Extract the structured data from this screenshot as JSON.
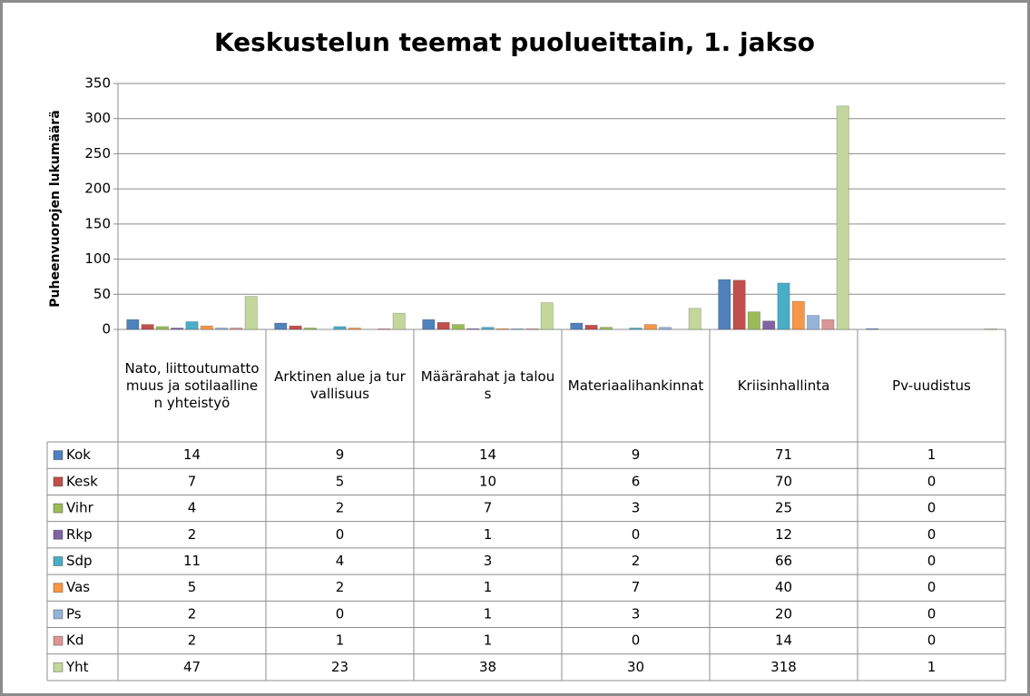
{
  "chart_data": {
    "type": "bar",
    "title": "Keskustelun teemat puolueittain, 1. jakso",
    "ylabel": "Puheenvuorojen lukumäärä",
    "categories": [
      "Nato, liittoutumattomuus ja sotilaallinen yhteistyö",
      "Arktinen alue ja turvallisuus",
      "Määrärahat ja talous",
      "Materiaalihankinnat",
      "Kriisinhallinta",
      "Pv-uudistus"
    ],
    "series": [
      {
        "name": "Kok",
        "color": "#4f81bd",
        "values": [
          14,
          9,
          14,
          9,
          71,
          1
        ]
      },
      {
        "name": "Kesk",
        "color": "#c0504d",
        "values": [
          7,
          5,
          10,
          6,
          70,
          0
        ]
      },
      {
        "name": "Vihr",
        "color": "#9bbb59",
        "values": [
          4,
          2,
          7,
          3,
          25,
          0
        ]
      },
      {
        "name": "Rkp",
        "color": "#8064a2",
        "values": [
          2,
          0,
          1,
          0,
          12,
          0
        ]
      },
      {
        "name": "Sdp",
        "color": "#4bacc6",
        "values": [
          11,
          4,
          3,
          2,
          66,
          0
        ]
      },
      {
        "name": "Vas",
        "color": "#f79646",
        "values": [
          5,
          2,
          1,
          7,
          40,
          0
        ]
      },
      {
        "name": "Ps",
        "color": "#95b3d7",
        "values": [
          2,
          0,
          1,
          3,
          20,
          0
        ]
      },
      {
        "name": "Kd",
        "color": "#d99694",
        "values": [
          2,
          1,
          1,
          0,
          14,
          0
        ]
      },
      {
        "name": "Yht",
        "color": "#c3d69b",
        "values": [
          47,
          23,
          38,
          30,
          318,
          1
        ]
      }
    ],
    "ylim": [
      0,
      350
    ],
    "yticks": [
      0,
      50,
      100,
      150,
      200,
      250,
      300,
      350
    ],
    "grid": true
  }
}
